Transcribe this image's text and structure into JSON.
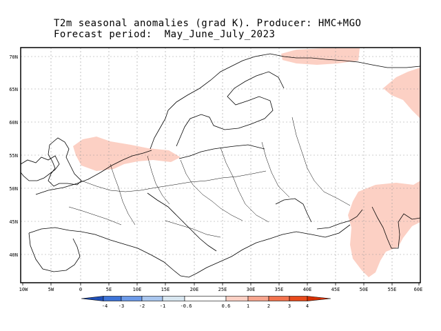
{
  "title_line1": "T2m seasonal anomalies (grad K). Producer: HMC+MGO",
  "title_line2": "Forecast period:  May_June_July_2023",
  "map": {
    "lon_labels": [
      "10W",
      "5W",
      "0",
      "5E",
      "10E",
      "15E",
      "20E",
      "25E",
      "30E",
      "35E",
      "40E",
      "45E",
      "50E",
      "55E",
      "60E"
    ],
    "lat_labels": [
      "70N",
      "65N",
      "60N",
      "55N",
      "50N",
      "45N",
      "40N"
    ],
    "anomaly_fill_color": "#fcd0c4",
    "grid": "dotted"
  },
  "colorbar": {
    "colors": [
      "#1f4fb8",
      "#3d74d8",
      "#6c9ae8",
      "#a9c6ee",
      "#d8e6f0",
      "#ffffff",
      "#fcd0c4",
      "#f7a58e",
      "#f2734e",
      "#e84b1c",
      "#d63000"
    ],
    "labels": [
      "-4",
      "-3",
      "-2",
      "-1",
      "-0.6",
      "0.6",
      "1",
      "2",
      "3",
      "4"
    ]
  }
}
